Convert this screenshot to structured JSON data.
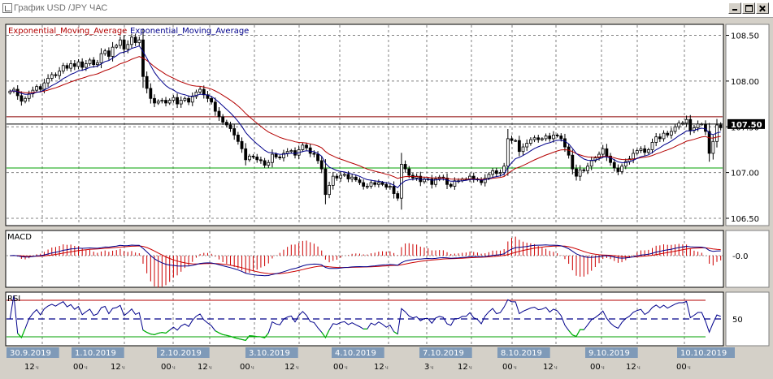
{
  "window": {
    "title": "График USD /JPY ЧАС",
    "buttons": [
      "minimize",
      "maximize",
      "close"
    ]
  },
  "colors": {
    "background": "#ffffff",
    "frame": "#d4d0c8",
    "grid": "#808080",
    "bull_candle": "#ffffff",
    "bear_candle": "#000000",
    "ema_fast": "#00008b",
    "ema_slow": "#b40000",
    "resistance_line": "#8b0000",
    "support_line": "#00a000",
    "current_price_line": "#000000",
    "macd_line": "#00008b",
    "signal_line": "#cc0000",
    "macd_hist": "#cc0000",
    "rsi_line": "#00008b",
    "rsi_oversold_segment": "#00bb00",
    "date_label_bg": "#7f9ab8"
  },
  "chart_data": [
    {
      "type": "candlestick",
      "legend": [
        "Exponential_Moving_Average",
        "Exponential_Moving_Average"
      ],
      "y_ticks": [
        "108.50",
        "108.00",
        "107.50",
        "107.00",
        "106.50"
      ],
      "ylim": [
        106.42,
        108.62
      ],
      "current_price": "107.50",
      "horizontal_levels": [
        107.61,
        107.53,
        107.05
      ],
      "closes": [
        107.89,
        107.91,
        107.84,
        107.78,
        107.81,
        107.86,
        107.9,
        107.94,
        107.91,
        107.98,
        108.03,
        108.07,
        108.06,
        108.11,
        108.17,
        108.14,
        108.19,
        108.16,
        108.21,
        108.15,
        108.19,
        108.23,
        108.18,
        108.2,
        108.3,
        108.33,
        108.27,
        108.37,
        108.39,
        108.45,
        108.35,
        108.4,
        108.48,
        108.42,
        108.45,
        108.05,
        107.92,
        107.81,
        107.76,
        107.78,
        107.79,
        107.76,
        107.79,
        107.82,
        107.75,
        107.79,
        107.81,
        107.77,
        107.83,
        107.88,
        107.91,
        107.85,
        107.81,
        107.77,
        107.67,
        107.61,
        107.55,
        107.52,
        107.48,
        107.41,
        107.34,
        107.26,
        107.14,
        107.18,
        107.17,
        107.14,
        107.13,
        107.08,
        107.11,
        107.2,
        107.17,
        107.16,
        107.21,
        107.23,
        107.24,
        107.19,
        107.25,
        107.3,
        107.27,
        107.21,
        107.2,
        107.13,
        107.04,
        106.76,
        106.86,
        106.96,
        106.94,
        106.97,
        106.98,
        106.93,
        106.95,
        106.92,
        106.89,
        106.85,
        106.85,
        106.89,
        106.87,
        106.89,
        106.87,
        106.84,
        106.85,
        106.77,
        106.72,
        107.09,
        107.04,
        106.97,
        106.94,
        106.96,
        106.9,
        106.93,
        106.93,
        106.87,
        106.93,
        106.95,
        106.94,
        106.87,
        106.85,
        106.91,
        106.91,
        106.93,
        106.93,
        106.96,
        106.93,
        106.92,
        106.89,
        106.94,
        106.98,
        107.02,
        106.99,
        107.0,
        107.07,
        107.37,
        107.35,
        107.35,
        107.23,
        107.28,
        107.32,
        107.36,
        107.38,
        107.36,
        107.37,
        107.4,
        107.37,
        107.41,
        107.4,
        107.37,
        107.28,
        107.19,
        107.04,
        106.96,
        107.03,
        107.02,
        107.07,
        107.13,
        107.16,
        107.2,
        107.26,
        107.18,
        107.11,
        107.05,
        107.01,
        107.07,
        107.12,
        107.15,
        107.21,
        107.24,
        107.26,
        107.22,
        107.25,
        107.33,
        107.39,
        107.37,
        107.43,
        107.41,
        107.45,
        107.5,
        107.54,
        107.54,
        107.58,
        107.46,
        107.49,
        107.53,
        107.53,
        107.45,
        107.21,
        107.34,
        107.52,
        107.49
      ]
    },
    {
      "type": "line",
      "title": "MACD",
      "y_ticks": [
        "-0.0"
      ]
    },
    {
      "type": "line",
      "title": "RSI",
      "y_ticks": [
        "50"
      ]
    }
  ],
  "time_axis": {
    "date_labels": [
      "30.9.2019",
      "1.10.2019",
      "2.10.2019",
      "3.10.2019",
      "4.10.2019",
      "7.10.2019",
      "8.10.2019",
      "9.10.2019",
      "10.10.2019"
    ],
    "hour_labels": [
      "12",
      "00",
      "12",
      "00",
      "12",
      "00",
      "12",
      "00",
      "12",
      "3",
      "12",
      "00",
      "12",
      "00",
      "12",
      "00"
    ],
    "hour_suffix": "ч"
  }
}
